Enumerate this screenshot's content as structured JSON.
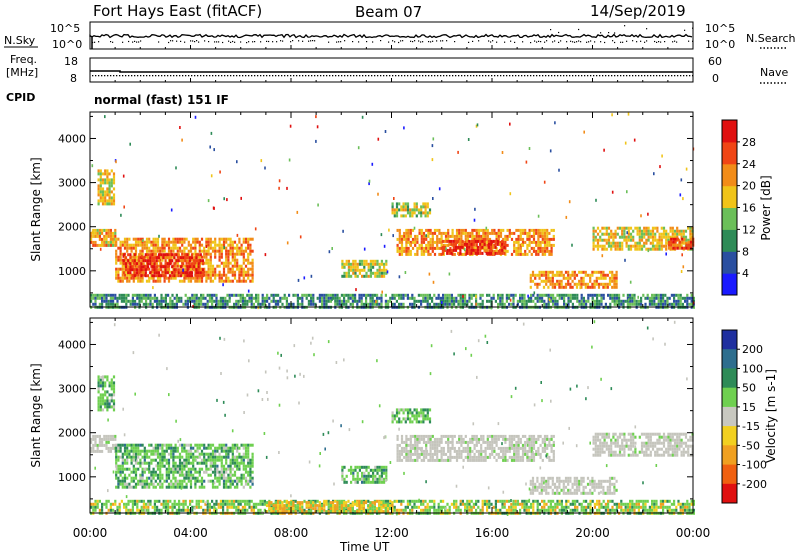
{
  "header": {
    "station": "Fort Hays East (fitACF)",
    "beam": "Beam 07",
    "date": "14/Sep/2019"
  },
  "panel_labels": {
    "nsky": "N.Sky",
    "nsearch": "N.Search",
    "freq_line1": "Freq.",
    "freq_line2": "[MHz]",
    "nave": "Nave",
    "cpid": "CPID",
    "cpid_value": "normal (fast) 151 IF"
  },
  "noise_axis": {
    "left_ticks": [
      "10^5",
      "10^0"
    ],
    "right_ticks": [
      "10^5",
      "10^0"
    ]
  },
  "freq_axis": {
    "left_ticks": [
      "18",
      "8"
    ],
    "right_ticks": [
      "60",
      "0"
    ]
  },
  "colors": {
    "power_scale": [
      "#1a1aff",
      "#2a4fa0",
      "#2e8b57",
      "#6bbf59",
      "#f0c419",
      "#f28c18",
      "#f04515",
      "#e01010"
    ],
    "velocity_scale": [
      "#1f2f9f",
      "#2e6e8e",
      "#2e8b57",
      "#6fd050",
      "#c8c8c0",
      "#f2d020",
      "#f0a020",
      "#f06010",
      "#e01010"
    ],
    "gray_echo": "#c5c5bd"
  },
  "chart_data": [
    {
      "type": "heatmap",
      "title": "Power",
      "xlabel": "",
      "ylabel": "Slant Range [km]",
      "x_ticks": [
        "00:00",
        "04:00",
        "08:00",
        "12:00",
        "16:00",
        "20:00",
        "00:00"
      ],
      "xlim": [
        0,
        24
      ],
      "y_ticks": [
        1000,
        2000,
        3000,
        4000
      ],
      "ylim": [
        180,
        4600
      ],
      "colorbar": {
        "label": "Power [dB]",
        "ticks": [
          4,
          8,
          12,
          16,
          20,
          24,
          28
        ],
        "range": [
          0,
          32
        ]
      },
      "echo_regions": [
        {
          "t0": 0.0,
          "t1": 24.0,
          "r0": 200,
          "r1": 480,
          "value": 10
        },
        {
          "t0": 0.3,
          "t1": 1.0,
          "r0": 2500,
          "r1": 3300,
          "value": 18
        },
        {
          "t0": 0.0,
          "t1": 1.0,
          "r0": 1550,
          "r1": 1950,
          "value": 20
        },
        {
          "t0": 1.0,
          "t1": 6.5,
          "r0": 750,
          "r1": 1750,
          "value": 22
        },
        {
          "t0": 1.3,
          "t1": 4.5,
          "r0": 900,
          "r1": 1400,
          "value": 28
        },
        {
          "t0": 10.0,
          "t1": 11.8,
          "r0": 850,
          "r1": 1250,
          "value": 16
        },
        {
          "t0": 12.0,
          "t1": 13.5,
          "r0": 2250,
          "r1": 2550,
          "value": 16
        },
        {
          "t0": 12.2,
          "t1": 18.5,
          "r0": 1350,
          "r1": 1950,
          "value": 22
        },
        {
          "t0": 14.0,
          "t1": 16.5,
          "r0": 1400,
          "r1": 1700,
          "value": 28
        },
        {
          "t0": 17.5,
          "t1": 21.0,
          "r0": 650,
          "r1": 1000,
          "value": 22
        },
        {
          "t0": 20.0,
          "t1": 24.0,
          "r0": 1500,
          "r1": 2000,
          "value": 18
        },
        {
          "t0": 23.0,
          "t1": 24.0,
          "r0": 1500,
          "r1": 1750,
          "value": 26
        }
      ]
    },
    {
      "type": "heatmap",
      "title": "Velocity",
      "xlabel": "Time UT",
      "ylabel": "Slant Range [km]",
      "x_ticks": [
        "00:00",
        "04:00",
        "08:00",
        "12:00",
        "16:00",
        "20:00",
        "00:00"
      ],
      "xlim": [
        0,
        24
      ],
      "y_ticks": [
        1000,
        2000,
        3000,
        4000
      ],
      "ylim": [
        180,
        4600
      ],
      "colorbar": {
        "label": "Velocity [m s-1]",
        "ticks": [
          "200",
          "100",
          "50",
          "15",
          "-15",
          "-50",
          "-100",
          "-200"
        ]
      },
      "echo_regions": [
        {
          "t0": 0.0,
          "t1": 24.0,
          "r0": 200,
          "r1": 480,
          "class": "positive-low"
        },
        {
          "t0": 7.0,
          "t1": 12.0,
          "r0": 200,
          "r1": 450,
          "class": "negative"
        },
        {
          "t0": 0.3,
          "t1": 1.0,
          "r0": 2500,
          "r1": 3300,
          "class": "positive"
        },
        {
          "t0": 0.0,
          "t1": 1.0,
          "r0": 1550,
          "r1": 1950,
          "class": "ground-scatter"
        },
        {
          "t0": 1.0,
          "t1": 6.5,
          "r0": 750,
          "r1": 1750,
          "class": "positive"
        },
        {
          "t0": 10.0,
          "t1": 11.8,
          "r0": 850,
          "r1": 1250,
          "class": "positive"
        },
        {
          "t0": 12.0,
          "t1": 13.5,
          "r0": 2250,
          "r1": 2550,
          "class": "positive"
        },
        {
          "t0": 12.2,
          "t1": 18.5,
          "r0": 1350,
          "r1": 1950,
          "class": "ground-scatter"
        },
        {
          "t0": 17.5,
          "t1": 21.0,
          "r0": 650,
          "r1": 1000,
          "class": "ground-scatter"
        },
        {
          "t0": 20.0,
          "t1": 24.0,
          "r0": 1500,
          "r1": 2000,
          "class": "ground-scatter"
        }
      ]
    }
  ]
}
